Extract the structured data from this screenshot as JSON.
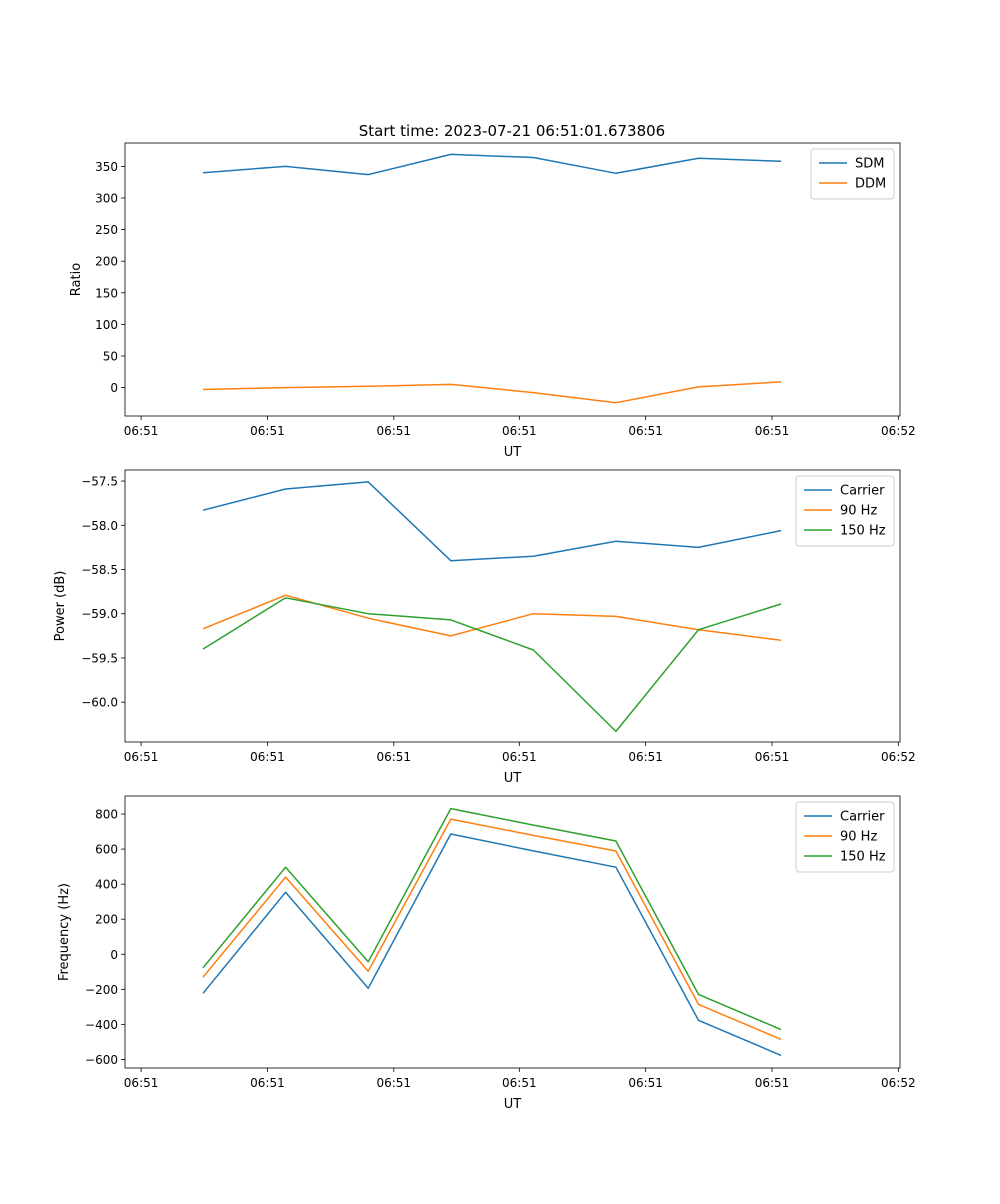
{
  "title": "Start time: 2023-07-21 06:51:01.673806",
  "colors": {
    "blue": "#1f77b4",
    "orange": "#ff7f0e",
    "green": "#2ca02c"
  },
  "chart_data": [
    {
      "type": "line",
      "xlabel": "UT",
      "ylabel": "Ratio",
      "x": [
        0,
        1,
        2,
        3,
        4,
        5,
        6,
        7
      ],
      "xlim": [
        -0.945,
        8.44
      ],
      "xticks": [
        -0.75,
        0.78,
        2.31,
        3.83,
        5.36,
        6.89,
        8.42
      ],
      "xticklabels": [
        "06:51",
        "06:51",
        "06:51",
        "06:51",
        "06:51",
        "06:51",
        "06:52"
      ],
      "ylim": [
        -45,
        387
      ],
      "yticks": [
        0,
        50,
        100,
        150,
        200,
        250,
        300,
        350
      ],
      "yticklabels": [
        "0",
        "50",
        "100",
        "150",
        "200",
        "250",
        "300",
        "350"
      ],
      "legend_position": "top-right",
      "series": [
        {
          "name": "SDM",
          "color": "#1f77b4",
          "values": [
            340,
            350,
            337,
            369,
            364,
            339,
            363,
            358
          ]
        },
        {
          "name": "DDM",
          "color": "#ff7f0e",
          "values": [
            -3,
            0,
            2,
            5,
            -8,
            -24,
            1,
            9
          ]
        }
      ]
    },
    {
      "type": "line",
      "xlabel": "UT",
      "ylabel": "Power (dB)",
      "x": [
        0,
        1,
        2,
        3,
        4,
        5,
        6,
        7
      ],
      "xlim": [
        -0.945,
        8.44
      ],
      "xticks": [
        -0.75,
        0.78,
        2.31,
        3.83,
        5.36,
        6.89,
        8.42
      ],
      "xticklabels": [
        "06:51",
        "06:51",
        "06:51",
        "06:51",
        "06:51",
        "06:51",
        "06:52"
      ],
      "ylim": [
        -60.45,
        -57.375
      ],
      "yticks": [
        -57.5,
        -58.0,
        -58.5,
        -59.0,
        -59.5,
        -60.0
      ],
      "yticklabels": [
        "−57.5",
        "−58.0",
        "−58.5",
        "−59.0",
        "−59.5",
        "−60.0"
      ],
      "legend_position": "top-right",
      "series": [
        {
          "name": "Carrier",
          "color": "#1f77b4",
          "values": [
            -57.83,
            -57.59,
            -57.51,
            -58.4,
            -58.35,
            -58.18,
            -58.25,
            -58.06
          ]
        },
        {
          "name": "90 Hz",
          "color": "#ff7f0e",
          "values": [
            -59.17,
            -58.79,
            -59.05,
            -59.25,
            -59.0,
            -59.03,
            -59.18,
            -59.3
          ]
        },
        {
          "name": "150 Hz",
          "color": "#2ca02c",
          "values": [
            -59.4,
            -58.82,
            -59.0,
            -59.07,
            -59.41,
            -60.33,
            -59.18,
            -58.89
          ]
        }
      ]
    },
    {
      "type": "line",
      "xlabel": "UT",
      "ylabel": "Frequency (Hz)",
      "x": [
        0,
        1,
        2,
        3,
        4,
        5,
        6,
        7
      ],
      "xlim": [
        -0.945,
        8.44
      ],
      "xticks": [
        -0.75,
        0.78,
        2.31,
        3.83,
        5.36,
        6.89,
        8.42
      ],
      "xticklabels": [
        "06:51",
        "06:51",
        "06:51",
        "06:51",
        "06:51",
        "06:51",
        "06:52"
      ],
      "ylim": [
        -649,
        903
      ],
      "yticks": [
        800,
        600,
        400,
        200,
        0,
        -200,
        -400,
        -600
      ],
      "yticklabels": [
        "800",
        "600",
        "400",
        "200",
        "0",
        "−200",
        "−400",
        "−600"
      ],
      "legend_position": "top-right",
      "series": [
        {
          "name": "Carrier",
          "color": "#1f77b4",
          "values": [
            -223,
            354,
            -194,
            686,
            590,
            497,
            -377,
            -577
          ]
        },
        {
          "name": "90 Hz",
          "color": "#ff7f0e",
          "values": [
            -131,
            440,
            -97,
            771,
            678,
            589,
            -286,
            -486
          ]
        },
        {
          "name": "150 Hz",
          "color": "#2ca02c",
          "values": [
            -77,
            497,
            -43,
            831,
            737,
            646,
            -229,
            -430
          ]
        }
      ]
    }
  ]
}
